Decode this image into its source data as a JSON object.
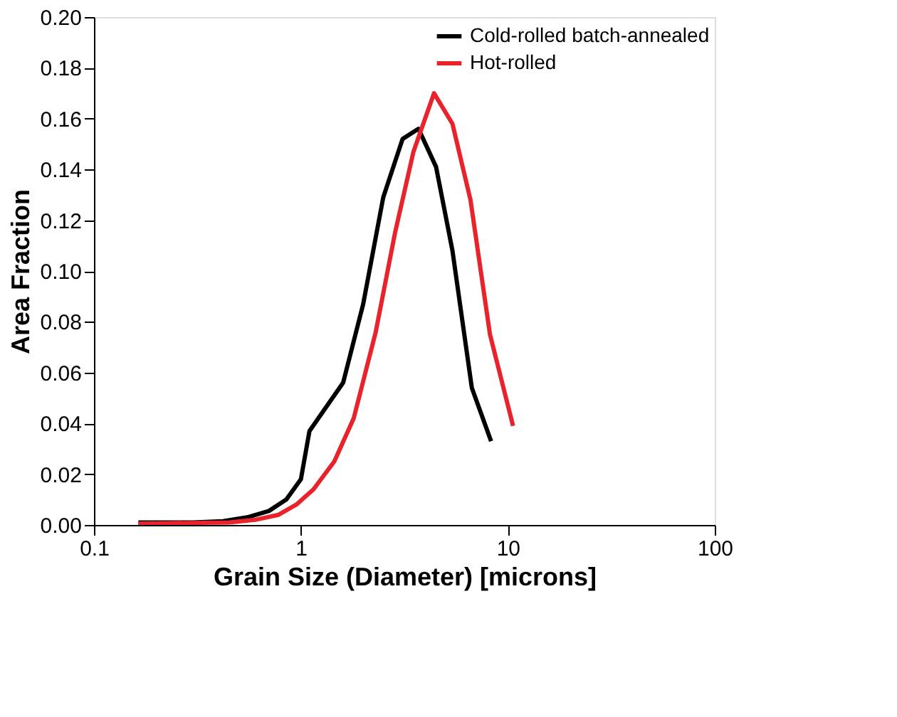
{
  "chart_data": {
    "type": "line",
    "xlabel": "Grain Size (Diameter) [microns]",
    "ylabel": "Area Fraction",
    "log": "x",
    "xlim": [
      0.1,
      100
    ],
    "xticks": [
      0.1,
      1,
      10,
      100
    ],
    "ylim": [
      0,
      0.2
    ],
    "yticks": [
      {
        "value": 0,
        "label": "0.00"
      },
      0.02,
      0.04,
      0.06,
      0.08,
      {
        "value": 0.1,
        "label": "0.10"
      },
      0.12,
      0.14,
      0.16,
      0.18,
      {
        "value": 0.2,
        "label": "0.20"
      }
    ],
    "grid": false,
    "legend": "top right",
    "marker": "none",
    "line_style": "solid",
    "series": [
      {
        "name": "Cold-rolled batch-annealed",
        "color": "#000000",
        "x": [
          0.164,
          0.3,
          0.42,
          0.55,
          0.7,
          0.85,
          1.0,
          1.1,
          1.6,
          2.0,
          2.5,
          3.1,
          3.7,
          4.5,
          5.4,
          6.7,
          8.3
        ],
        "values": [
          0.001,
          0.001,
          0.0015,
          0.003,
          0.0055,
          0.01,
          0.018,
          0.037,
          0.056,
          0.087,
          0.129,
          0.152,
          0.156,
          0.141,
          0.108,
          0.054,
          0.033
        ]
      },
      {
        "name": "Hot-rolled",
        "color": "#e8232b",
        "x": [
          0.164,
          0.3,
          0.45,
          0.6,
          0.78,
          0.95,
          1.15,
          1.45,
          1.8,
          2.3,
          2.85,
          3.5,
          4.4,
          5.4,
          6.6,
          8.2,
          10.6
        ],
        "values": [
          0.0005,
          0.0008,
          0.001,
          0.002,
          0.004,
          0.008,
          0.014,
          0.025,
          0.042,
          0.076,
          0.115,
          0.147,
          0.17,
          0.158,
          0.128,
          0.075,
          0.039
        ]
      }
    ]
  }
}
